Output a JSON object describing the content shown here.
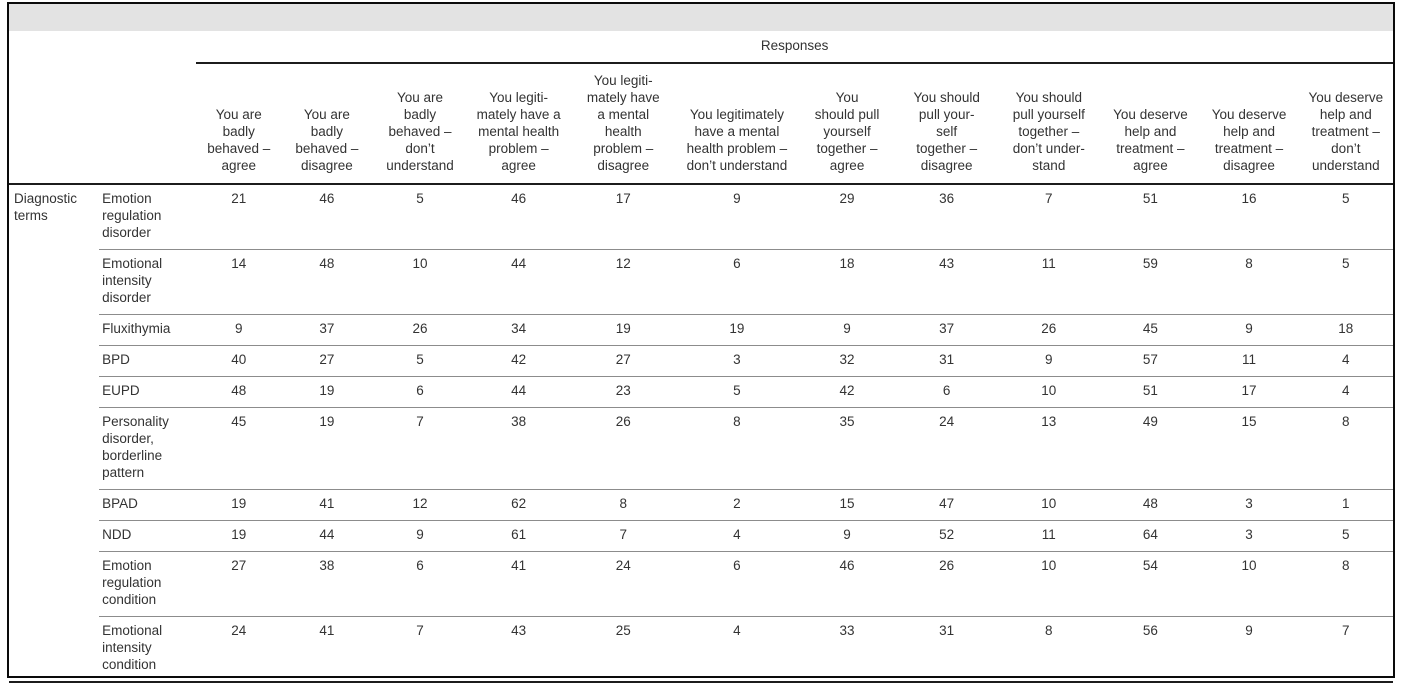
{
  "table": {
    "group_header": "Responses",
    "row_group_label": "Diagnostic\nterms",
    "columns": [
      {
        "label": "You are\nbadly\nbehaved –\nagree"
      },
      {
        "label": "You are\nbadly\nbehaved –\ndisagree"
      },
      {
        "label": "You are\nbadly\nbehaved –\ndon’t\nunderstand"
      },
      {
        "label": "You legiti-\nmately have a\nmental health\nproblem –\nagree"
      },
      {
        "label": "You legiti-\nmately have\na mental\nhealth\nproblem –\ndisagree"
      },
      {
        "label": "You legitimately\nhave a mental\nhealth problem –\ndon’t understand"
      },
      {
        "label": "You\nshould pull\nyourself\ntogether –\nagree"
      },
      {
        "label": "You should\npull your-\nself\ntogether –\ndisagree"
      },
      {
        "label": "You should\npull yourself\ntogether –\ndon’t under-\nstand"
      },
      {
        "label": "You deserve\nhelp and\ntreatment –\nagree"
      },
      {
        "label": "You deserve\nhelp and\ntreatment –\ndisagree"
      },
      {
        "label": "You deserve\nhelp and\ntreatment –\ndon’t\nunderstand"
      }
    ],
    "rows": [
      {
        "label": "Emotion\nregulation\ndisorder",
        "values": [
          21,
          46,
          5,
          46,
          17,
          9,
          29,
          36,
          7,
          51,
          16,
          5
        ]
      },
      {
        "label": "Emotional\nintensity\ndisorder",
        "values": [
          14,
          48,
          10,
          44,
          12,
          6,
          18,
          43,
          11,
          59,
          8,
          5
        ]
      },
      {
        "label": "Fluxithymia",
        "values": [
          9,
          37,
          26,
          34,
          19,
          19,
          9,
          37,
          26,
          45,
          9,
          18
        ]
      },
      {
        "label": "BPD",
        "values": [
          40,
          27,
          5,
          42,
          27,
          3,
          32,
          31,
          9,
          57,
          11,
          4
        ]
      },
      {
        "label": "EUPD",
        "values": [
          48,
          19,
          6,
          44,
          23,
          5,
          42,
          6,
          10,
          51,
          17,
          4
        ]
      },
      {
        "label": "Personality\ndisorder,\nborderline\npattern",
        "values": [
          45,
          19,
          7,
          38,
          26,
          8,
          35,
          24,
          13,
          49,
          15,
          8
        ]
      },
      {
        "label": "BPAD",
        "values": [
          19,
          41,
          12,
          62,
          8,
          2,
          15,
          47,
          10,
          48,
          3,
          1
        ]
      },
      {
        "label": "NDD",
        "values": [
          19,
          44,
          9,
          61,
          7,
          4,
          9,
          52,
          11,
          64,
          3,
          5
        ]
      },
      {
        "label": "Emotion\nregulation\ncondition",
        "values": [
          27,
          38,
          6,
          41,
          24,
          6,
          46,
          26,
          10,
          54,
          10,
          8
        ]
      },
      {
        "label": "Emotional\nintensity\ncondition",
        "values": [
          24,
          41,
          7,
          43,
          25,
          4,
          33,
          31,
          8,
          56,
          9,
          7
        ]
      }
    ]
  },
  "chart_data": {
    "type": "table",
    "title": "Responses",
    "row_group": "Diagnostic terms",
    "rows": [
      "Emotion regulation disorder",
      "Emotional intensity disorder",
      "Fluxithymia",
      "BPD",
      "EUPD",
      "Personality disorder, borderline pattern",
      "BPAD",
      "NDD",
      "Emotion regulation condition",
      "Emotional intensity condition"
    ],
    "columns": [
      "You are badly behaved – agree",
      "You are badly behaved – disagree",
      "You are badly behaved – don’t understand",
      "You legitimately have a mental health problem – agree",
      "You legitimately have a mental health problem – disagree",
      "You legitimately have a mental health problem – don’t understand",
      "You should pull yourself together – agree",
      "You should pull yourself together – disagree",
      "You should pull yourself together – don’t understand",
      "You deserve help and treatment – agree",
      "You deserve help and treatment – disagree",
      "You deserve help and treatment – don’t understand"
    ],
    "values": [
      [
        21,
        46,
        5,
        46,
        17,
        9,
        29,
        36,
        7,
        51,
        16,
        5
      ],
      [
        14,
        48,
        10,
        44,
        12,
        6,
        18,
        43,
        11,
        59,
        8,
        5
      ],
      [
        9,
        37,
        26,
        34,
        19,
        19,
        9,
        37,
        26,
        45,
        9,
        18
      ],
      [
        40,
        27,
        5,
        42,
        27,
        3,
        32,
        31,
        9,
        57,
        11,
        4
      ],
      [
        48,
        19,
        6,
        44,
        23,
        5,
        42,
        6,
        10,
        51,
        17,
        4
      ],
      [
        45,
        19,
        7,
        38,
        26,
        8,
        35,
        24,
        13,
        49,
        15,
        8
      ],
      [
        19,
        41,
        12,
        62,
        8,
        2,
        15,
        47,
        10,
        48,
        3,
        1
      ],
      [
        19,
        44,
        9,
        61,
        7,
        4,
        9,
        52,
        11,
        64,
        3,
        5
      ],
      [
        27,
        38,
        6,
        41,
        24,
        6,
        46,
        26,
        10,
        54,
        10,
        8
      ],
      [
        24,
        41,
        7,
        43,
        25,
        4,
        33,
        31,
        8,
        56,
        9,
        7
      ]
    ]
  }
}
